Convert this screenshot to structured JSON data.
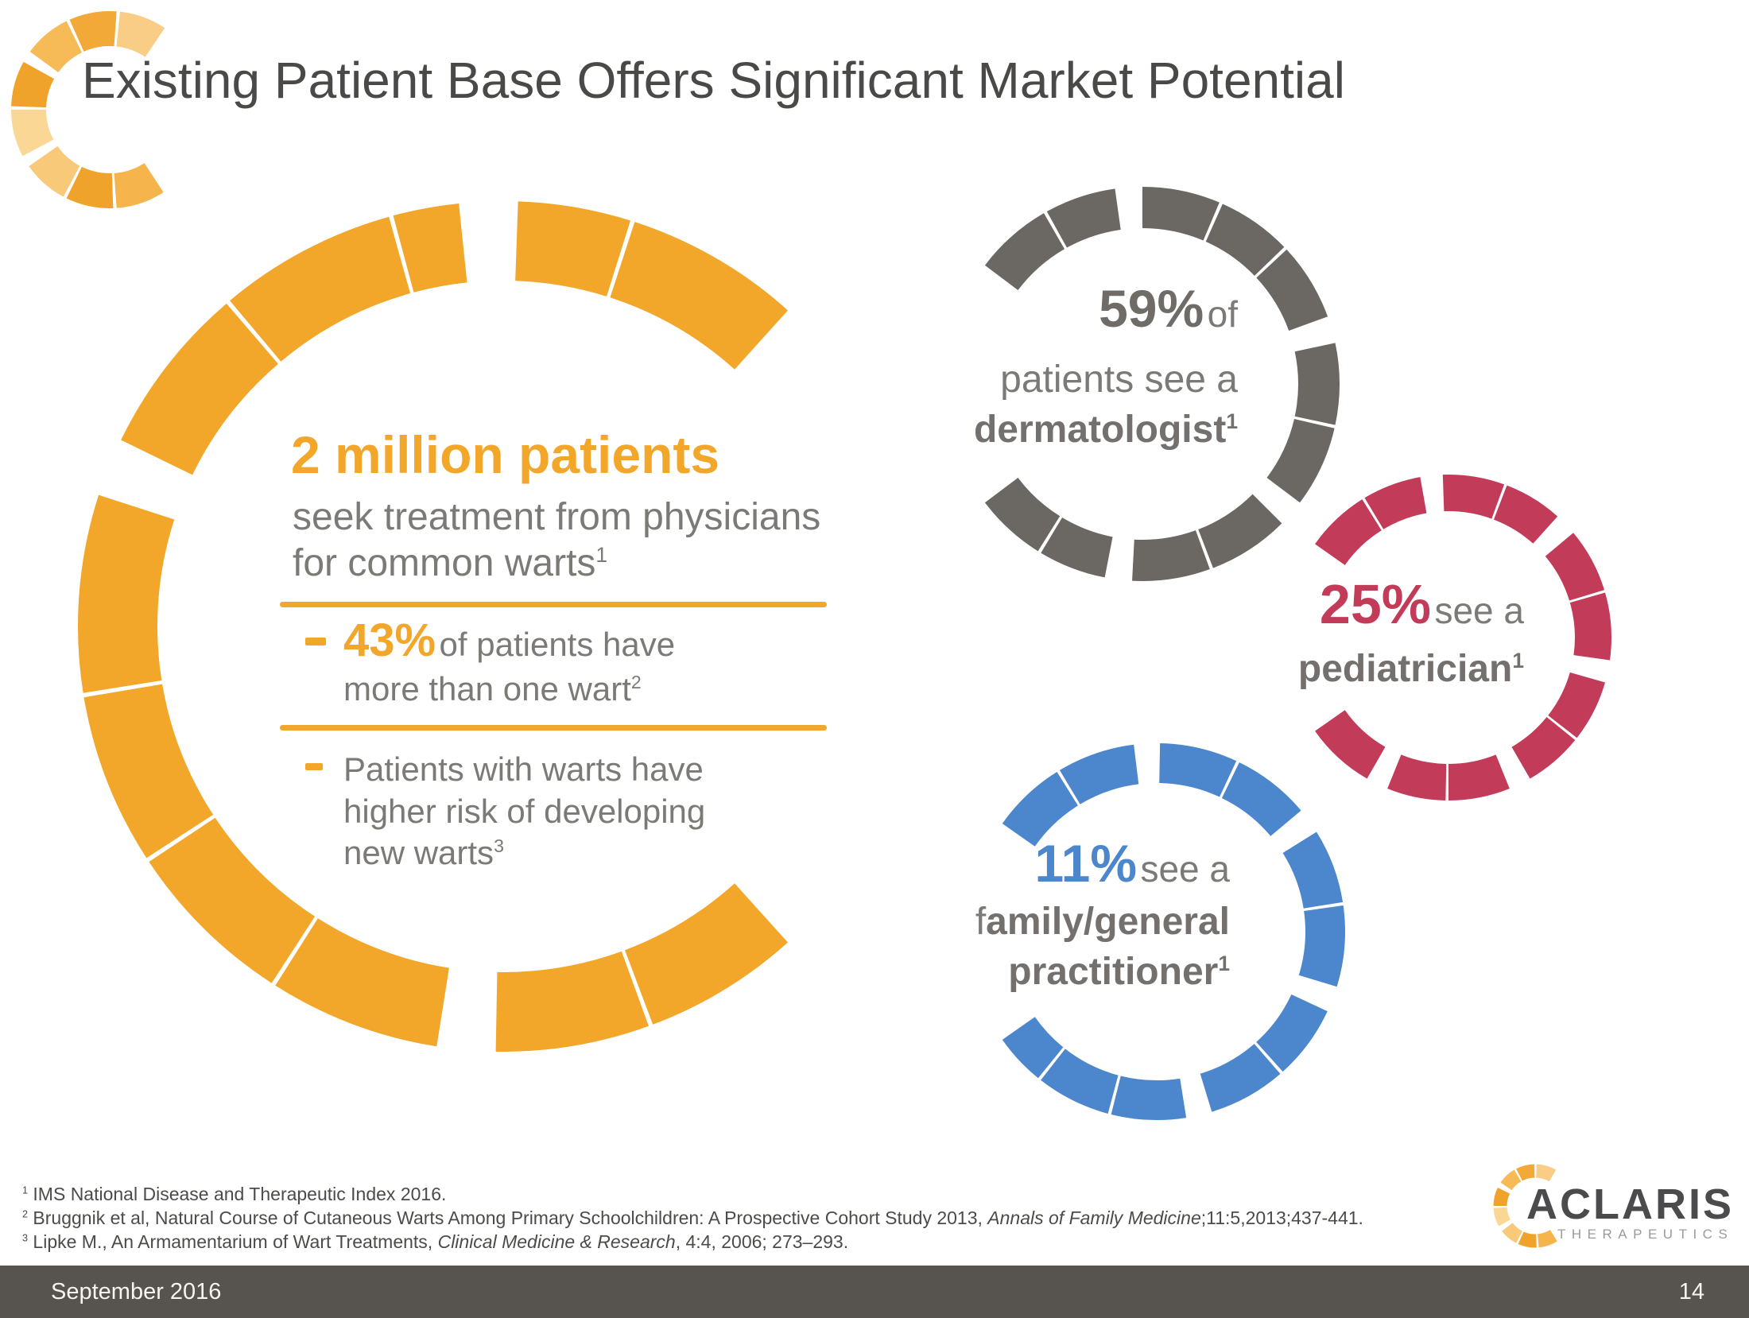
{
  "title": "Existing Patient Base Offers Significant Market Potential",
  "colors": {
    "orange": "#F2A72A",
    "gray_ring": "#6B6762",
    "gray_text": "#6F6C68",
    "red": "#C23B59",
    "blue": "#4C86CC",
    "body_gray": "#7C7A77",
    "title_gray": "#4A4948",
    "footnote_gray": "#4C4B49",
    "footer_bg": "#57534E",
    "logo_shades": [
      "#F5B44C",
      "#F0A32B",
      "#F8C979",
      "#FBD795",
      "#F0A32B",
      "#F6BA57",
      "#F2A937",
      "#F9CD86"
    ]
  },
  "main_stat": {
    "headline": "2 million patients",
    "sub_line1": "seek treatment from physicians",
    "sub_line2": "for common warts",
    "sub_sup": "1",
    "bullet1": {
      "stat": "43%",
      "rest": "of patients have",
      "line2": "more than one wart",
      "sup": "2"
    },
    "bullet2": {
      "line1": "Patients with warts have",
      "line2": "higher risk of developing",
      "line3": "new warts",
      "sup": "3"
    }
  },
  "derm_stat": {
    "pct": "59%",
    "pct_rest": "of",
    "line2": "patients see a",
    "line3": "dermatologist",
    "sup": "1"
  },
  "ped_stat": {
    "pct": "25%",
    "pct_rest": "see a",
    "line2": "pediatrician",
    "sup": "1"
  },
  "gp_stat": {
    "pct": "11%",
    "pct_rest": "see a",
    "line2_first": "f",
    "line2_rest": "amily/general",
    "line3": "practitioner",
    "sup": "1"
  },
  "footnotes": [
    {
      "sup": "1",
      "pre": " IMS National Disease and Therapeutic Index 2016.",
      "italic": "",
      "post": ""
    },
    {
      "sup": "2",
      "pre": " Bruggnik et al, Natural Course of Cutaneous Warts Among Primary Schoolchildren: A Prospective Cohort Study 2013, ",
      "italic": "Annals of Family Medicine",
      "post": ";11:5,2013;437-441."
    },
    {
      "sup": "3",
      "pre": " Lipke M., An Armamentarium of Wart Treatments, ",
      "italic": "Clinical Medicine & Research",
      "post": ", 4:4, 2006; 273–293."
    }
  ],
  "logo": {
    "wordmark": "ACLARIS",
    "subtext": "THERAPEUTICS"
  },
  "footer": {
    "date": "September 2016",
    "page": "14"
  }
}
